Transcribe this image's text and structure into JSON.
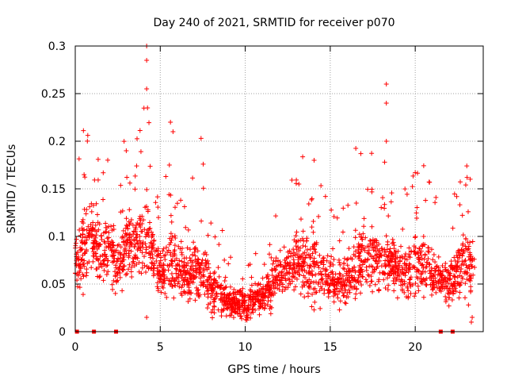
{
  "chart_data": {
    "type": "scatter",
    "title": "Day 240 of 2021, SRMTID for receiver p070",
    "xlabel": "GPS time / hours",
    "ylabel": "SRMTID / TECUs",
    "xlim": [
      0,
      24
    ],
    "ylim": [
      0,
      0.3
    ],
    "x_ticks": [
      0,
      5,
      10,
      15,
      20
    ],
    "x_tick_labels": [
      "0",
      "5",
      "10",
      "15",
      "20"
    ],
    "y_ticks": [
      0,
      0.05,
      0.1,
      0.15,
      0.2,
      0.25,
      0.3
    ],
    "y_tick_labels": [
      "0",
      "0.05",
      "0.1",
      "0.15",
      "0.2",
      "0.25",
      "0.3"
    ],
    "grid": true,
    "marker": "+",
    "color": "#ff0000",
    "envelope": {
      "description": "approximate per-hour central value and spread of the dense red '+' cloud",
      "x": [
        0.0,
        0.5,
        1.0,
        1.5,
        2.0,
        2.5,
        3.0,
        3.5,
        4.0,
        4.5,
        5.0,
        5.5,
        6.0,
        6.5,
        7.0,
        7.5,
        8.0,
        8.5,
        9.0,
        9.5,
        10.0,
        10.5,
        11.0,
        11.5,
        12.0,
        12.5,
        13.0,
        13.5,
        14.0,
        14.5,
        15.0,
        15.5,
        16.0,
        16.5,
        17.0,
        17.5,
        18.0,
        18.5,
        19.0,
        19.5,
        20.0,
        20.5,
        21.0,
        21.5,
        22.0,
        22.5,
        23.0,
        23.5
      ],
      "center": [
        0.07,
        0.09,
        0.1,
        0.08,
        0.085,
        0.065,
        0.09,
        0.095,
        0.1,
        0.09,
        0.06,
        0.07,
        0.065,
        0.06,
        0.065,
        0.07,
        0.045,
        0.04,
        0.035,
        0.03,
        0.03,
        0.035,
        0.04,
        0.045,
        0.06,
        0.065,
        0.07,
        0.07,
        0.07,
        0.06,
        0.055,
        0.05,
        0.06,
        0.07,
        0.08,
        0.075,
        0.075,
        0.07,
        0.065,
        0.06,
        0.07,
        0.075,
        0.06,
        0.055,
        0.05,
        0.065,
        0.07,
        0.06
      ],
      "spread": [
        0.025,
        0.035,
        0.035,
        0.03,
        0.03,
        0.025,
        0.035,
        0.035,
        0.045,
        0.035,
        0.025,
        0.03,
        0.025,
        0.025,
        0.03,
        0.03,
        0.02,
        0.02,
        0.015,
        0.015,
        0.015,
        0.015,
        0.015,
        0.02,
        0.02,
        0.025,
        0.03,
        0.035,
        0.035,
        0.025,
        0.02,
        0.02,
        0.025,
        0.035,
        0.035,
        0.03,
        0.03,
        0.025,
        0.025,
        0.025,
        0.03,
        0.03,
        0.025,
        0.02,
        0.02,
        0.03,
        0.035,
        0.025
      ]
    },
    "highlighted_points": [
      {
        "x": 4.2,
        "y": 0.3
      },
      {
        "x": 4.2,
        "y": 0.285
      },
      {
        "x": 4.2,
        "y": 0.255
      },
      {
        "x": 4.25,
        "y": 0.235
      },
      {
        "x": 5.6,
        "y": 0.22
      },
      {
        "x": 5.75,
        "y": 0.21
      },
      {
        "x": 7.4,
        "y": 0.203
      },
      {
        "x": 3.0,
        "y": 0.19
      },
      {
        "x": 18.3,
        "y": 0.26
      },
      {
        "x": 18.3,
        "y": 0.24
      },
      {
        "x": 18.3,
        "y": 0.2
      },
      {
        "x": 18.2,
        "y": 0.178
      },
      {
        "x": 16.8,
        "y": 0.187
      },
      {
        "x": 14.05,
        "y": 0.18
      },
      {
        "x": 20.0,
        "y": 0.167
      },
      {
        "x": 23.05,
        "y": 0.162
      },
      {
        "x": 4.2,
        "y": 0.015
      },
      {
        "x": 23.3,
        "y": 0.01
      },
      {
        "x": 23.35,
        "y": 0.015
      }
    ],
    "gap_markers_x": [
      0.1,
      1.1,
      2.4,
      21.5,
      22.2
    ]
  }
}
